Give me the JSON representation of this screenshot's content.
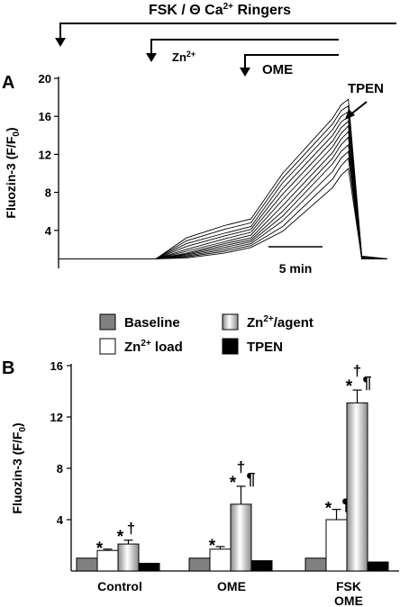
{
  "figure": {
    "panel_a_letter": "A",
    "panel_b_letter": "B"
  },
  "protocol": {
    "fsk_label": "FSK / Θ Ca",
    "fsk_sup": "2+",
    "fsk_suffix": " Ringers",
    "zn_label": "Zn",
    "zn_sup": "2+",
    "ome_label": "OME",
    "tpen_label": "TPEN"
  },
  "chart_data": [
    {
      "type": "line",
      "panel": "A",
      "ylabel": "Fluozin-3  (F/F",
      "ylabel_sub": "0",
      "ylabel_close": ")",
      "yticks": [
        4,
        8,
        12,
        16,
        20
      ],
      "ylim": [
        0,
        20
      ],
      "xlim": [
        0,
        27
      ],
      "scale_bar_label": "5 min",
      "scale_bar_minutes": 5,
      "annotation": "TPEN",
      "events_min": {
        "fsk": 0,
        "zn": 7.5,
        "ome": 15.5,
        "tpen": 23.5
      },
      "series": [
        {
          "x": [
            0,
            8,
            10.5,
            13.6,
            15.8,
            18.4,
            22.5,
            23.2,
            23.8,
            24.9,
            27
          ],
          "y": [
            1,
            1,
            3.2,
            4.5,
            5.2,
            10,
            15.8,
            17.2,
            17.8,
            1.3,
            1
          ]
        },
        {
          "x": [
            0,
            8,
            10.5,
            13.6,
            15.8,
            18.4,
            22.5,
            23.2,
            23.8,
            24.9,
            27
          ],
          "y": [
            1,
            1,
            2.9,
            4.1,
            4.8,
            9.5,
            15.2,
            16.6,
            17.1,
            1.2,
            1
          ]
        },
        {
          "x": [
            0,
            8,
            10.5,
            13.6,
            15.8,
            18.4,
            22.5,
            23.2,
            23.8,
            24.9,
            27
          ],
          "y": [
            1,
            1,
            2.6,
            3.7,
            4.4,
            9,
            14.6,
            16,
            16.5,
            1.1,
            1
          ]
        },
        {
          "x": [
            0,
            8,
            10.5,
            13.6,
            15.8,
            18.4,
            22.5,
            23.2,
            23.8,
            24.9,
            27
          ],
          "y": [
            1,
            1,
            2.3,
            3.4,
            4.1,
            8.4,
            14,
            15.4,
            16,
            1.1,
            1
          ]
        },
        {
          "x": [
            0,
            8,
            10.5,
            13.6,
            15.8,
            18.4,
            22.5,
            23.2,
            23.8,
            24.9,
            27
          ],
          "y": [
            1,
            1,
            2,
            3.1,
            3.8,
            7.8,
            13.4,
            14.8,
            15.5,
            1.1,
            1
          ]
        },
        {
          "x": [
            0,
            8,
            10.5,
            13.6,
            15.8,
            18.4,
            22.5,
            23.2,
            23.8,
            24.9,
            27
          ],
          "y": [
            1,
            1,
            1.8,
            2.8,
            3.5,
            7.2,
            12.8,
            14.2,
            15,
            1,
            1
          ]
        },
        {
          "x": [
            0,
            8,
            10.5,
            13.6,
            15.8,
            18.4,
            22.5,
            23.2,
            23.8,
            24.9,
            27
          ],
          "y": [
            1,
            1,
            1.6,
            2.6,
            3.2,
            6.6,
            12.2,
            13.6,
            14.4,
            1,
            1
          ]
        },
        {
          "x": [
            0,
            8,
            10.5,
            13.6,
            15.8,
            18.4,
            22.5,
            23.2,
            23.8,
            24.9,
            27
          ],
          "y": [
            1,
            1,
            1.5,
            2.4,
            3,
            6,
            11.6,
            13,
            13.8,
            1,
            1
          ]
        },
        {
          "x": [
            0,
            8,
            10.5,
            13.6,
            15.8,
            18.4,
            22.5,
            23.2,
            23.8,
            24.9,
            27
          ],
          "y": [
            1,
            1,
            1.4,
            2.2,
            2.8,
            5.5,
            11,
            12.3,
            13,
            1,
            1
          ]
        },
        {
          "x": [
            0,
            8,
            10.5,
            13.6,
            15.8,
            18.4,
            22.5,
            23.2,
            23.8,
            24.9,
            27
          ],
          "y": [
            1,
            1,
            1.3,
            2,
            2.6,
            5,
            10.2,
            11.6,
            12.3,
            1,
            1
          ]
        },
        {
          "x": [
            0,
            8,
            10.5,
            13.6,
            15.8,
            18.4,
            22.5,
            23.2,
            23.8,
            24.9,
            27
          ],
          "y": [
            1,
            1,
            1.2,
            1.8,
            2.4,
            4.4,
            9.4,
            10.8,
            11.6,
            1,
            1
          ]
        },
        {
          "x": [
            0,
            8,
            10.5,
            13.6,
            15.8,
            18.4,
            22.5,
            23.2,
            23.8,
            24.9,
            27
          ],
          "y": [
            1,
            1,
            1.1,
            1.6,
            2.2,
            3.9,
            8.5,
            9.8,
            10.5,
            1,
            1
          ]
        }
      ]
    },
    {
      "type": "bar",
      "panel": "B",
      "categories": [
        "Control",
        "OME",
        "FSK\nOME"
      ],
      "ylabel": "Fluozin-3  (F/F",
      "ylabel_sub": "0",
      "ylabel_close": ")",
      "yticks": [
        4,
        8,
        12,
        16
      ],
      "ylim": [
        0,
        16
      ],
      "legend": [
        {
          "name": "Baseline",
          "sup": "",
          "suffix": "",
          "color": "#808080"
        },
        {
          "name": "Zn",
          "sup": "2+",
          "suffix": " load",
          "color": "#ffffff"
        },
        {
          "name": "Zn",
          "sup": "2+",
          "suffix": "/agent",
          "color": "gradient"
        },
        {
          "name": "TPEN",
          "sup": "",
          "suffix": "",
          "color": "#000000"
        }
      ],
      "series": [
        {
          "key": "Baseline",
          "values": [
            1.0,
            1.0,
            1.0
          ],
          "errors": [
            0,
            0,
            0
          ],
          "marks": [
            "",
            "",
            ""
          ]
        },
        {
          "key": "Zn2+ load",
          "values": [
            1.6,
            1.7,
            4.0
          ],
          "errors": [
            0.1,
            0.2,
            0.8
          ],
          "marks": [
            "*",
            "*",
            "*¶"
          ]
        },
        {
          "key": "Zn2+/agent",
          "values": [
            2.1,
            5.2,
            13.1
          ],
          "errors": [
            0.3,
            1.4,
            1.0
          ],
          "marks": [
            "*†",
            "*†¶",
            "*†¶"
          ]
        },
        {
          "key": "TPEN",
          "values": [
            0.6,
            0.8,
            0.7
          ],
          "errors": [
            0,
            0,
            0
          ],
          "marks": [
            "",
            "",
            ""
          ]
        }
      ]
    }
  ]
}
